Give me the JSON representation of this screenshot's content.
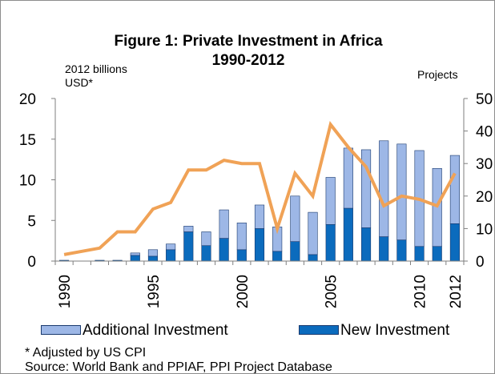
{
  "title": [
    "Figure 1: Private Investment in Africa",
    "1990-2012"
  ],
  "left_axis_unit": [
    "2012 billions",
    "USD*"
  ],
  "right_axis_unit": "Projects",
  "legend": [
    {
      "label": "Additional Investment",
      "color": "#9db7e6"
    },
    {
      "label": "New Investment",
      "color": "#0b6bbd"
    }
  ],
  "notes": [
    "* Adjusted by US CPI",
    "Source:  World Bank and PPIAF, PPI Project Database"
  ],
  "colors": {
    "line": "#f0a256",
    "bar_outline": "#1a3a6e"
  },
  "chart_data": {
    "type": "bar",
    "categories": [
      "1990",
      "1991",
      "1992",
      "1993",
      "1994",
      "1995",
      "1996",
      "1997",
      "1998",
      "1999",
      "2000",
      "2001",
      "2002",
      "2003",
      "2004",
      "2005",
      "2006",
      "2007",
      "2008",
      "2009",
      "2010",
      "2011",
      "2012"
    ],
    "x_tick_labels": [
      "1990",
      "1995",
      "2000",
      "2005",
      "2010",
      "2012"
    ],
    "series": [
      {
        "name": "New Investment",
        "axis": "left",
        "stack": "invest",
        "values": [
          0.1,
          0,
          0.1,
          0.1,
          0.7,
          0.6,
          1.4,
          3.6,
          1.9,
          2.8,
          1.4,
          4.0,
          1.2,
          2.4,
          0.8,
          4.5,
          6.5,
          4.1,
          3.0,
          2.6,
          1.8,
          1.8,
          4.6
        ]
      },
      {
        "name": "Additional Investment",
        "axis": "left",
        "stack": "invest",
        "values": [
          0,
          0,
          0,
          0,
          0.3,
          0.8,
          0.7,
          0.7,
          1.7,
          3.5,
          3.3,
          2.9,
          3.0,
          5.6,
          5.2,
          5.8,
          7.4,
          9.6,
          11.8,
          11.8,
          11.8,
          9.6,
          8.4
        ]
      },
      {
        "name": "Projects",
        "type": "line",
        "axis": "right",
        "values": [
          2,
          3,
          4,
          9,
          9,
          16,
          18,
          28,
          28,
          31,
          30,
          30,
          10,
          27,
          20,
          42,
          35,
          29,
          17,
          20,
          19,
          17,
          27
        ]
      }
    ],
    "left_axis": {
      "ylim": [
        0,
        20
      ],
      "ticks": [
        0,
        5,
        10,
        15,
        20
      ]
    },
    "right_axis": {
      "ylim": [
        0,
        50
      ],
      "ticks": [
        0,
        10,
        20,
        30,
        40,
        50
      ]
    },
    "grid": false,
    "legend_position": "bottom"
  }
}
